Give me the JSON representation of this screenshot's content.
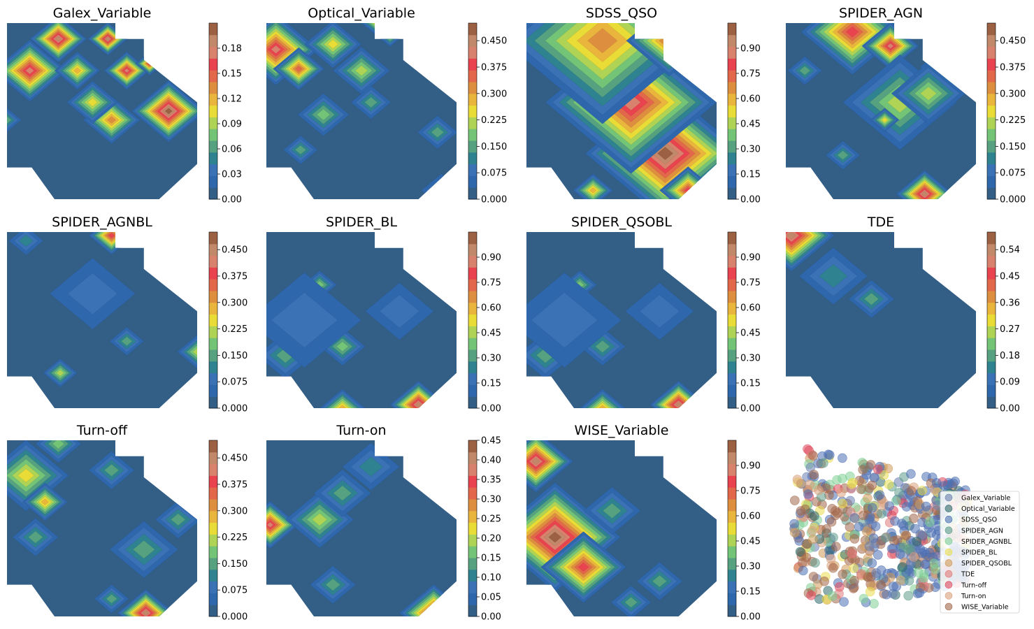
{
  "figure": {
    "background": "#ffffff"
  },
  "colormap": [
    "#335f87",
    "#2f67ad",
    "#3a72b5",
    "#2f8390",
    "#56a17f",
    "#74c477",
    "#aed355",
    "#eadc37",
    "#e9b53d",
    "#dd8e3f",
    "#e3674a",
    "#e9434f",
    "#d8816c",
    "#c1896a",
    "#9c6043"
  ],
  "panels": [
    {
      "title": "Galex_Variable",
      "cb_ticks": [
        "0.00",
        "0.03",
        "0.06",
        "0.09",
        "0.12",
        "0.15",
        "0.18"
      ],
      "cb_vmax": 0.21,
      "hot": [
        [
          0.27,
          0.09,
          0.1,
          0.9
        ],
        [
          0.53,
          0.09,
          0.07,
          0.95
        ],
        [
          0.12,
          0.27,
          0.13,
          0.85
        ],
        [
          0.37,
          0.27,
          0.08,
          0.55
        ],
        [
          0.63,
          0.27,
          0.08,
          0.85
        ],
        [
          0.75,
          0.23,
          0.05,
          0.8
        ],
        [
          0.85,
          0.5,
          0.13,
          1.0
        ],
        [
          0.55,
          0.55,
          0.1,
          0.65
        ],
        [
          0.45,
          0.45,
          0.09,
          0.5
        ],
        [
          0.0,
          0.55,
          0.05,
          0.3
        ]
      ]
    },
    {
      "title": "Optical_Variable",
      "cb_ticks": [
        "0.000",
        "0.075",
        "0.150",
        "0.225",
        "0.300",
        "0.375",
        "0.450"
      ],
      "cb_vmax": 0.5,
      "hot": [
        [
          0.05,
          0.15,
          0.15,
          0.85
        ],
        [
          0.17,
          0.26,
          0.09,
          0.7
        ],
        [
          0.65,
          0.0,
          0.1,
          0.9
        ],
        [
          0.5,
          0.27,
          0.1,
          0.45
        ],
        [
          0.35,
          0.12,
          0.1,
          0.5
        ],
        [
          0.3,
          0.52,
          0.09,
          0.35
        ],
        [
          0.55,
          0.45,
          0.07,
          0.3
        ],
        [
          0.9,
          0.62,
          0.07,
          0.3
        ],
        [
          0.18,
          0.72,
          0.06,
          0.3
        ],
        [
          0.92,
          0.95,
          0.07,
          0.3
        ]
      ]
    },
    {
      "title": "SDSS_QSO",
      "cb_ticks": [
        "0.00",
        "0.15",
        "0.30",
        "0.45",
        "0.60",
        "0.75",
        "0.90"
      ],
      "cb_vmax": 1.05,
      "hot": [
        [
          0.73,
          0.74,
          0.28,
          1.0
        ],
        [
          0.55,
          0.45,
          0.3,
          0.85
        ],
        [
          0.4,
          0.1,
          0.35,
          0.65
        ],
        [
          0.75,
          0.1,
          0.15,
          0.7
        ],
        [
          0.85,
          0.95,
          0.1,
          0.8
        ],
        [
          0.35,
          0.95,
          0.07,
          0.6
        ]
      ]
    },
    {
      "title": "SPIDER_AGN",
      "cb_ticks": [
        "0.000",
        "0.075",
        "0.150",
        "0.225",
        "0.300",
        "0.375",
        "0.450"
      ],
      "cb_vmax": 0.5,
      "hot": [
        [
          0.35,
          0.05,
          0.18,
          0.75
        ],
        [
          0.55,
          0.13,
          0.1,
          0.85
        ],
        [
          0.9,
          0.25,
          0.13,
          0.95
        ],
        [
          0.6,
          0.45,
          0.2,
          0.45
        ],
        [
          0.75,
          0.4,
          0.13,
          0.45
        ],
        [
          0.52,
          0.55,
          0.05,
          0.5
        ],
        [
          0.73,
          0.97,
          0.1,
          0.95
        ],
        [
          0.1,
          0.27,
          0.06,
          0.3
        ],
        [
          0.3,
          0.75,
          0.06,
          0.25
        ]
      ]
    },
    {
      "title": "SPIDER_AGNBL",
      "cb_ticks": [
        "0.000",
        "0.075",
        "0.150",
        "0.225",
        "0.300",
        "0.375",
        "0.450"
      ],
      "cb_vmax": 0.5,
      "hot": [
        [
          0.55,
          0.02,
          0.08,
          0.8
        ],
        [
          1.0,
          0.68,
          0.07,
          0.4
        ],
        [
          0.28,
          0.8,
          0.06,
          0.45
        ],
        [
          0.63,
          0.62,
          0.06,
          0.25
        ],
        [
          0.45,
          0.35,
          0.15,
          0.15
        ],
        [
          0.1,
          0.05,
          0.06,
          0.2
        ]
      ]
    },
    {
      "title": "SPIDER_BL",
      "cb_ticks": [
        "0.00",
        "0.15",
        "0.30",
        "0.45",
        "0.60",
        "0.75",
        "0.90"
      ],
      "cb_vmax": 1.05,
      "hot": [
        [
          0.28,
          0.3,
          0.06,
          0.35
        ],
        [
          0.4,
          0.65,
          0.08,
          0.35
        ],
        [
          0.1,
          0.7,
          0.1,
          0.25
        ],
        [
          0.8,
          0.98,
          0.1,
          0.95
        ],
        [
          0.4,
          1.0,
          0.08,
          0.6
        ],
        [
          0.7,
          0.45,
          0.12,
          0.15
        ],
        [
          0.2,
          0.5,
          0.2,
          0.15
        ]
      ]
    },
    {
      "title": "SPIDER_QSOBL",
      "cb_ticks": [
        "0.00",
        "0.15",
        "0.30",
        "0.45",
        "0.60",
        "0.75",
        "0.90"
      ],
      "cb_vmax": 1.05,
      "hot": [
        [
          0.28,
          0.3,
          0.06,
          0.35
        ],
        [
          0.4,
          0.65,
          0.08,
          0.3
        ],
        [
          0.1,
          0.7,
          0.1,
          0.25
        ],
        [
          0.8,
          0.98,
          0.1,
          0.95
        ],
        [
          0.4,
          1.0,
          0.08,
          0.6
        ],
        [
          0.7,
          0.45,
          0.12,
          0.15
        ],
        [
          0.2,
          0.5,
          0.2,
          0.15
        ]
      ]
    },
    {
      "title": "TDE",
      "cb_ticks": [
        "0.00",
        "0.09",
        "0.18",
        "0.27",
        "0.36",
        "0.45",
        "0.54"
      ],
      "cb_vmax": 0.6,
      "hot": [
        [
          0.03,
          0.02,
          0.15,
          0.95
        ],
        [
          0.45,
          0.38,
          0.08,
          0.25
        ],
        [
          0.25,
          0.25,
          0.12,
          0.2
        ]
      ]
    },
    {
      "title": "Turn-off",
      "cb_ticks": [
        "0.000",
        "0.075",
        "0.150",
        "0.225",
        "0.300",
        "0.375",
        "0.450"
      ],
      "cb_vmax": 0.5,
      "hot": [
        [
          0.1,
          0.2,
          0.15,
          0.5
        ],
        [
          0.2,
          0.35,
          0.08,
          0.6
        ],
        [
          0.27,
          0.02,
          0.08,
          0.35
        ],
        [
          0.73,
          0.98,
          0.1,
          0.9
        ],
        [
          0.55,
          0.17,
          0.08,
          0.3
        ],
        [
          0.72,
          0.62,
          0.12,
          0.3
        ],
        [
          0.9,
          0.45,
          0.08,
          0.25
        ],
        [
          0.15,
          0.55,
          0.08,
          0.25
        ],
        [
          0.55,
          0.9,
          0.06,
          0.25
        ]
      ]
    },
    {
      "title": "Turn-on",
      "cb_ticks": [
        "0.00",
        "0.05",
        "0.10",
        "0.15",
        "0.20",
        "0.25",
        "0.30",
        "0.35",
        "0.40",
        "0.45"
      ],
      "cb_vmax": 0.45,
      "hot": [
        [
          0.02,
          0.48,
          0.1,
          0.85
        ],
        [
          0.28,
          0.45,
          0.12,
          0.45
        ],
        [
          0.4,
          0.3,
          0.1,
          0.3
        ],
        [
          0.88,
          0.98,
          0.12,
          0.85
        ],
        [
          0.35,
          0.82,
          0.08,
          0.3
        ],
        [
          0.55,
          0.15,
          0.1,
          0.2
        ]
      ]
    },
    {
      "title": "WISE_Variable",
      "cb_ticks": [
        "0.00",
        "0.15",
        "0.30",
        "0.45",
        "0.60",
        "0.75",
        "0.90"
      ],
      "cb_vmax": 1.05,
      "hot": [
        [
          0.15,
          0.55,
          0.23,
          1.0
        ],
        [
          0.05,
          0.12,
          0.13,
          0.95
        ],
        [
          0.3,
          0.72,
          0.15,
          0.75
        ],
        [
          0.45,
          0.4,
          0.1,
          0.3
        ],
        [
          0.7,
          0.8,
          0.08,
          0.25
        ],
        [
          0.55,
          0.92,
          0.07,
          0.25
        ]
      ]
    }
  ],
  "legend": {
    "entries": [
      {
        "label": "Galex_Variable",
        "color": "#6a7fb0"
      },
      {
        "label": "Optical_Variable",
        "color": "#2f6a6c"
      },
      {
        "label": "SDSS_QSO",
        "color": "#4d6fb3"
      },
      {
        "label": "SPIDER_AGN",
        "color": "#5e9c8a"
      },
      {
        "label": "SPIDER_AGNBL",
        "color": "#7fcf96"
      },
      {
        "label": "SPIDER_BL",
        "color": "#e9dc4f"
      },
      {
        "label": "SPIDER_QSOBL",
        "color": "#d09a58"
      },
      {
        "label": "TDE",
        "color": "#e07a7a"
      },
      {
        "label": "Turn-off",
        "color": "#e0485c"
      },
      {
        "label": "Turn-on",
        "color": "#d9a07c"
      },
      {
        "label": "WISE_Variable",
        "color": "#a3674b"
      }
    ]
  },
  "chart_data": {
    "type": "heatmap",
    "description_of_layout": "",
    "grid": "off",
    "legend_location": "lower right",
    "panels": [
      {
        "title": "Galex_Variable",
        "colorbar_range": [
          0.0,
          0.21
        ],
        "colorbar_ticks": [
          0.0,
          0.03,
          0.06,
          0.09,
          0.12,
          0.15,
          0.18
        ]
      },
      {
        "title": "Optical_Variable",
        "colorbar_range": [
          0.0,
          0.5
        ],
        "colorbar_ticks": [
          0.0,
          0.075,
          0.15,
          0.225,
          0.3,
          0.375,
          0.45
        ]
      },
      {
        "title": "SDSS_QSO",
        "colorbar_range": [
          0.0,
          1.05
        ],
        "colorbar_ticks": [
          0.0,
          0.15,
          0.3,
          0.45,
          0.6,
          0.75,
          0.9
        ]
      },
      {
        "title": "SPIDER_AGN",
        "colorbar_range": [
          0.0,
          0.5
        ],
        "colorbar_ticks": [
          0.0,
          0.075,
          0.15,
          0.225,
          0.3,
          0.375,
          0.45
        ]
      },
      {
        "title": "SPIDER_AGNBL",
        "colorbar_range": [
          0.0,
          0.5
        ],
        "colorbar_ticks": [
          0.0,
          0.075,
          0.15,
          0.225,
          0.3,
          0.375,
          0.45
        ]
      },
      {
        "title": "SPIDER_BL",
        "colorbar_range": [
          0.0,
          1.05
        ],
        "colorbar_ticks": [
          0.0,
          0.15,
          0.3,
          0.45,
          0.6,
          0.75,
          0.9
        ]
      },
      {
        "title": "SPIDER_QSOBL",
        "colorbar_range": [
          0.0,
          1.05
        ],
        "colorbar_ticks": [
          0.0,
          0.15,
          0.3,
          0.45,
          0.6,
          0.75,
          0.9
        ]
      },
      {
        "title": "TDE",
        "colorbar_range": [
          0.0,
          0.6
        ],
        "colorbar_ticks": [
          0.0,
          0.09,
          0.18,
          0.27,
          0.36,
          0.45,
          0.54
        ]
      },
      {
        "title": "Turn-off",
        "colorbar_range": [
          0.0,
          0.5
        ],
        "colorbar_ticks": [
          0.0,
          0.075,
          0.15,
          0.225,
          0.3,
          0.375,
          0.45
        ]
      },
      {
        "title": "Turn-on",
        "colorbar_range": [
          0.0,
          0.45
        ],
        "colorbar_ticks": [
          0.0,
          0.05,
          0.1,
          0.15,
          0.2,
          0.25,
          0.3,
          0.35,
          0.4,
          0.45
        ]
      },
      {
        "title": "WISE_Variable",
        "colorbar_range": [
          0.0,
          1.05
        ],
        "colorbar_ticks": [
          0.0,
          0.15,
          0.3,
          0.45,
          0.6,
          0.75,
          0.9
        ]
      }
    ],
    "scatter_legend": [
      "Galex_Variable",
      "Optical_Variable",
      "SDSS_QSO",
      "SPIDER_AGN",
      "SPIDER_AGNBL",
      "SPIDER_BL",
      "SPIDER_QSOBL",
      "TDE",
      "Turn-off",
      "Turn-on",
      "WISE_Variable"
    ]
  }
}
